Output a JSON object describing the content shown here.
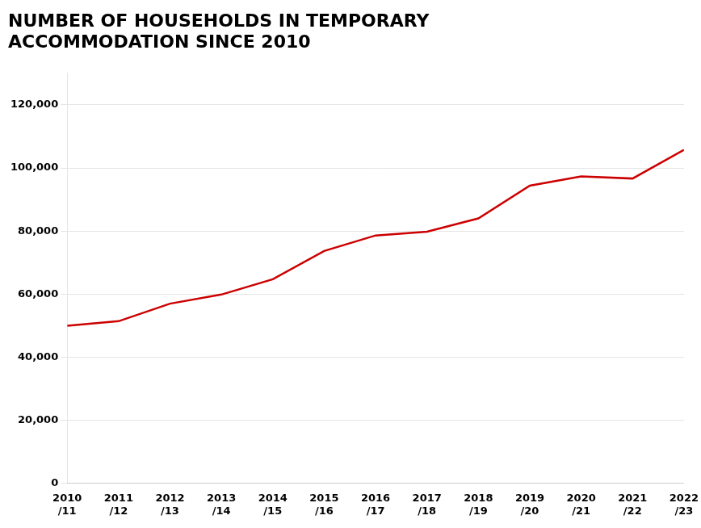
{
  "chart_data": {
    "type": "line",
    "title": "NUMBER OF HOUSEHOLDS IN TEMPORARY\nACCOMMODATION SINCE 2010",
    "categories": [
      "2010\n/11",
      "2011\n/12",
      "2012\n/13",
      "2013\n/14",
      "2014\n/15",
      "2015\n/16",
      "2016\n/17",
      "2017\n/18",
      "2018\n/19",
      "2019\n/20",
      "2020\n/21",
      "2021\n/22",
      "2022\n/23"
    ],
    "values": [
      49990,
      51430,
      56980,
      59870,
      64710,
      73670,
      78600,
      79800,
      84000,
      94370,
      97290,
      96650,
      105750
    ],
    "color": "#cc0000",
    "ylim": [
      0,
      130000
    ],
    "yticks": [
      0,
      {
        "value": 20000,
        "label": "20,000"
      },
      {
        "value": 40000,
        "label": "40,000"
      },
      {
        "value": 60000,
        "label": "60,000"
      },
      {
        "value": 80000,
        "label": "80,000"
      },
      {
        "value": 100000,
        "label": "100,000"
      },
      {
        "value": 120000,
        "label": "120,000"
      }
    ],
    "grid": true
  }
}
